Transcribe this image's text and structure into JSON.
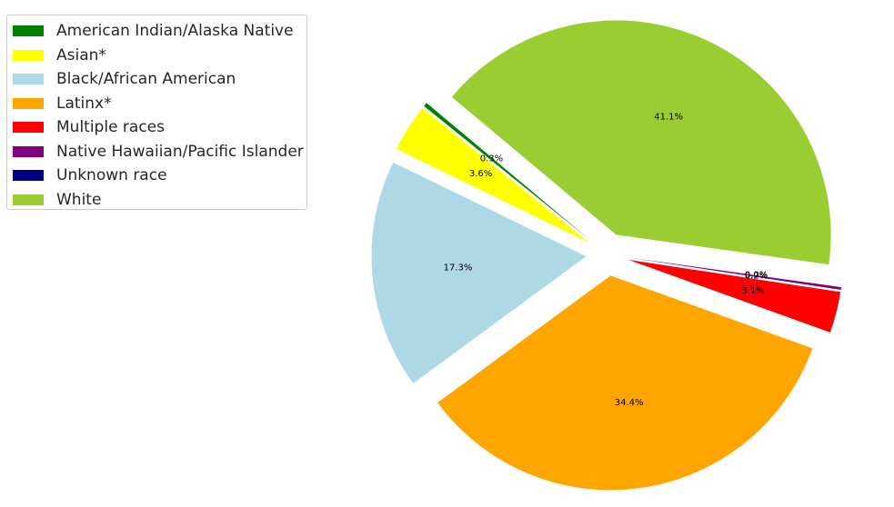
{
  "chart_data": {
    "type": "pie",
    "title": "",
    "categories": [
      "American Indian/Alaska Native",
      "Asian*",
      "Black/African American",
      "Latinx*",
      "Multiple races",
      "Native Hawaiian/Pacific Islander",
      "Unknown race",
      "White"
    ],
    "values": [
      0.3,
      3.6,
      17.3,
      34.4,
      3.1,
      0.2,
      0.0,
      41.1
    ],
    "value_labels": [
      "0.3%",
      "3.6%",
      "17.3%",
      "34.4%",
      "3.1%",
      "0.2%",
      "0.0%",
      "41.1%"
    ],
    "colors": [
      "#008000",
      "#ffff00",
      "#add8e6",
      "#ffa500",
      "#ff0000",
      "#800080",
      "#000080",
      "#9acd32"
    ],
    "exploded": true,
    "legend_placement": "upper-left"
  }
}
